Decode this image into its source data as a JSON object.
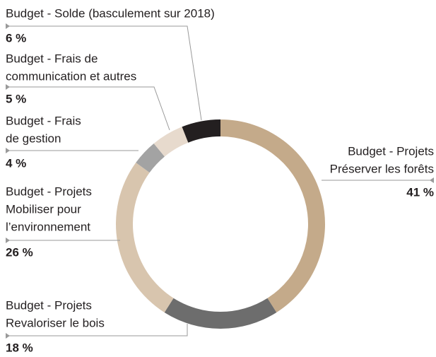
{
  "chart_data": {
    "type": "donut",
    "categories": [
      [
        "Budget - Projets",
        "Préserver les forêts"
      ],
      [
        "Budget - Projets",
        "Revaloriser le bois"
      ],
      [
        "Budget - Projets",
        "Mobiliser pour",
        "l’environnement"
      ],
      [
        "Budget - Frais",
        "de gestion"
      ],
      [
        "Budget - Frais de",
        "communication et autres"
      ],
      [
        "Budget - Solde (basculement sur 2018)"
      ]
    ],
    "values": [
      41,
      18,
      26,
      4,
      5,
      6
    ],
    "value_labels": [
      "41 %",
      "18 %",
      "26 %",
      "4 %",
      "5 %",
      "6 %"
    ],
    "colors": [
      "#c4aa8a",
      "#6d6d6d",
      "#d8c5ae",
      "#a3a3a3",
      "#e7dacd",
      "#231f20"
    ]
  }
}
